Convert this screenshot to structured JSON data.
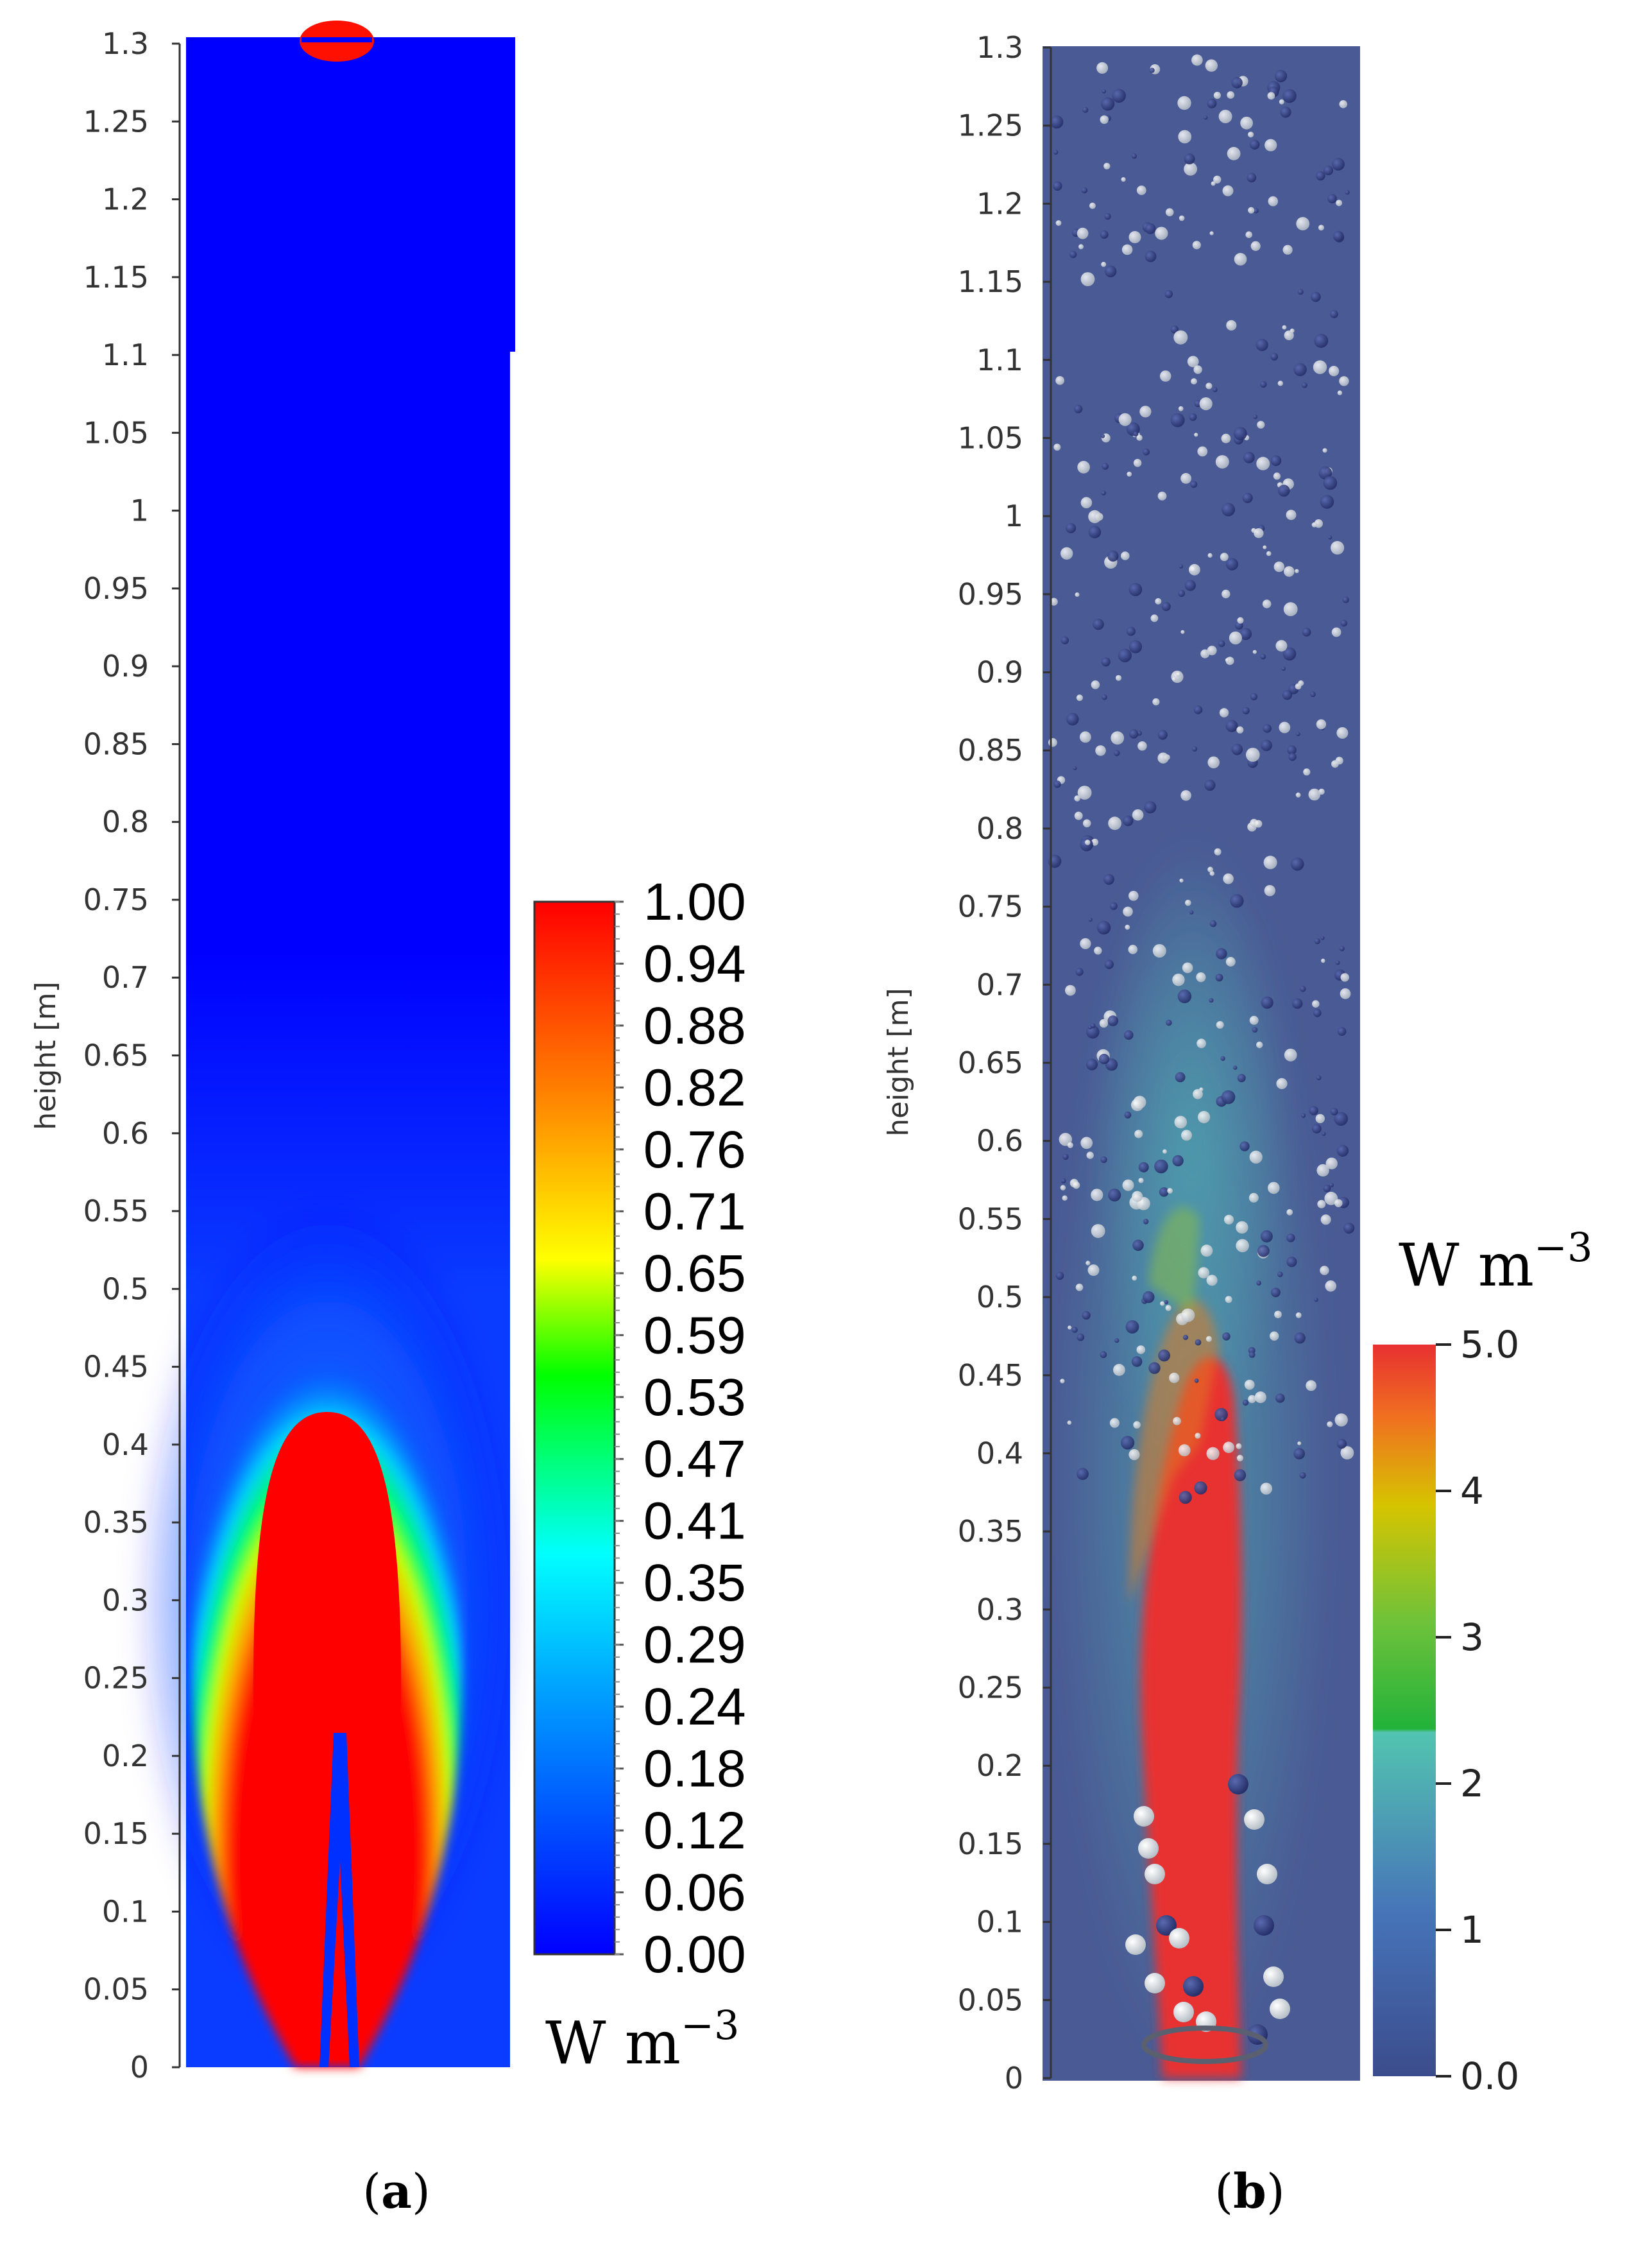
{
  "panels": [
    {
      "id": "a",
      "label_open": "(",
      "label_letter": "a",
      "label_close": ")",
      "ylabel": "height [m]",
      "ylim": [
        0,
        1.3
      ],
      "yticks": [
        "0",
        "0.05",
        "0.1",
        "0.15",
        "0.2",
        "0.25",
        "0.3",
        "0.35",
        "0.4",
        "0.45",
        "0.5",
        "0.55",
        "0.6",
        "0.65",
        "0.7",
        "0.75",
        "0.8",
        "0.85",
        "0.9",
        "0.95",
        "1",
        "1.05",
        "1.1",
        "1.15",
        "1.2",
        "1.25",
        "1.3"
      ],
      "colorbar_ticks": [
        "1.00",
        "0.94",
        "0.88",
        "0.82",
        "0.76",
        "0.71",
        "0.65",
        "0.59",
        "0.53",
        "0.47",
        "0.41",
        "0.35",
        "0.29",
        "0.24",
        "0.18",
        "0.12",
        "0.06",
        "0.00"
      ],
      "colorbar_unit_base": "W m",
      "colorbar_unit_exp": "−3",
      "colormap": [
        "#0000ff",
        "#00ffff",
        "#00ff00",
        "#ffff00",
        "#ff0000"
      ]
    },
    {
      "id": "b",
      "label_open": "(",
      "label_letter": "b",
      "label_close": ")",
      "ylabel": "height [m]",
      "ylim": [
        0,
        1.3
      ],
      "yticks": [
        "0",
        "0.05",
        "0.1",
        "0.15",
        "0.2",
        "0.25",
        "0.3",
        "0.35",
        "0.4",
        "0.45",
        "0.5",
        "0.55",
        "0.6",
        "0.65",
        "0.7",
        "0.75",
        "0.8",
        "0.85",
        "0.9",
        "0.95",
        "1",
        "1.05",
        "1.1",
        "1.15",
        "1.2",
        "1.25",
        "1.3"
      ],
      "colorbar_ticks": [
        "5.0",
        "4",
        "3",
        "2",
        "1",
        "0.0"
      ],
      "colorbar_range": [
        0,
        5
      ],
      "colorbar_unit_base": "W m",
      "colorbar_unit_exp": "−3",
      "colormap": [
        "#3b4c8c",
        "#3f7fbf",
        "#52c4b0",
        "#22b23a",
        "#d6c400",
        "#f07020",
        "#e83030"
      ]
    }
  ]
}
